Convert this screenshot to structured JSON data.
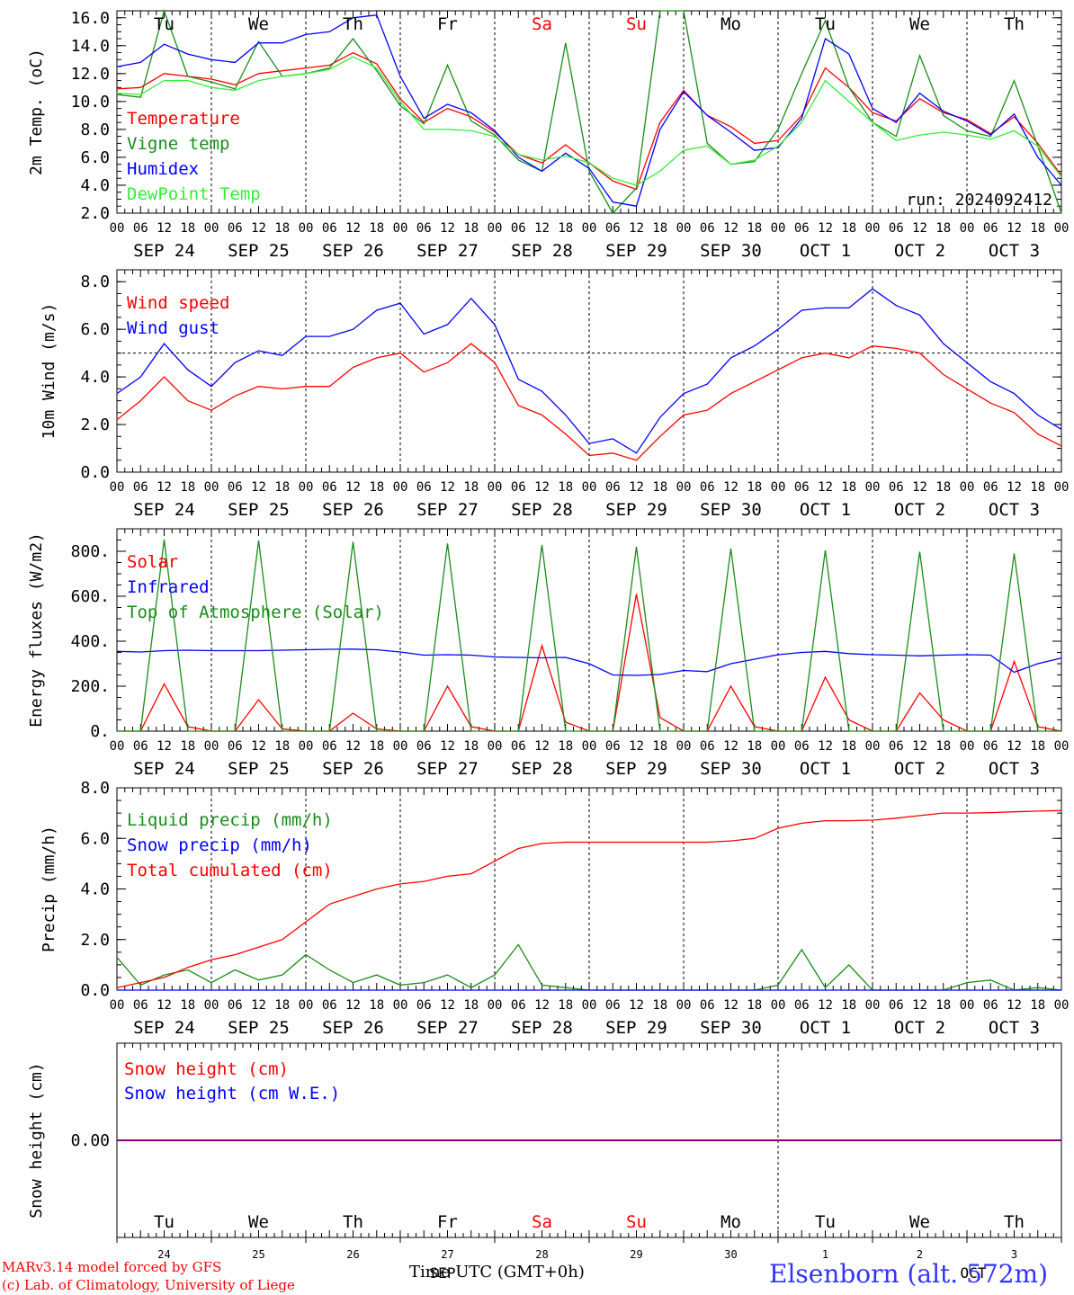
{
  "colors": {
    "red": "#ff0000",
    "dark_green": "#1a8c1a",
    "blue": "#0000ff",
    "light_green": "#33ee33",
    "purple": "#800080",
    "grid": "#000000"
  },
  "x_axis": {
    "hour_ticks": [
      "00",
      "06",
      "12",
      "18"
    ],
    "end_tick": "00",
    "dates": [
      "SEP 24",
      "SEP 25",
      "SEP 26",
      "SEP 27",
      "SEP 28",
      "SEP 29",
      "SEP 30",
      "OCT  1",
      "OCT  2",
      "OCT  3"
    ]
  },
  "day_names": [
    {
      "label": "Tu",
      "weekend": false
    },
    {
      "label": "We",
      "weekend": false
    },
    {
      "label": "Th",
      "weekend": false
    },
    {
      "label": "Fr",
      "weekend": false
    },
    {
      "label": "Sa",
      "weekend": true
    },
    {
      "label": "Su",
      "weekend": true
    },
    {
      "label": "Mo",
      "weekend": false
    },
    {
      "label": "Tu",
      "weekend": false
    },
    {
      "label": "We",
      "weekend": false
    },
    {
      "label": "Th",
      "weekend": false
    }
  ],
  "bottom_day_numbers": [
    "24",
    "25",
    "26",
    "27",
    "28",
    "29",
    "30",
    "1",
    "2",
    "3"
  ],
  "bottom_month_labels": [
    "SEP",
    "OCT"
  ],
  "footer": {
    "model_line": "MARv3.14 model forced by GFS",
    "copyright_line": "(c) Lab. of Climatology, University of Liege",
    "time_label": "Time UTC (GMT+0h)",
    "station": "Elsenborn (alt. 572m)"
  },
  "chart_data": [
    {
      "type": "line",
      "ylabel": "2m Temp. (oC)",
      "ylim": [
        2,
        16.5
      ],
      "yticks": [
        2,
        4,
        6,
        8,
        10,
        12,
        14,
        16
      ],
      "ytick_labels": [
        "2.0",
        "4.0",
        "6.0",
        "8.0",
        "10.0",
        "12.0",
        "14.0",
        "16.0"
      ],
      "annotation": "run: 2024092412",
      "x_hours": [
        0,
        6,
        12,
        18,
        24,
        30,
        36,
        42,
        48,
        54,
        60,
        66,
        72,
        78,
        84,
        90,
        96,
        102,
        108,
        114,
        120,
        126,
        132,
        138,
        144,
        150,
        156,
        162,
        168,
        174,
        180,
        186,
        192,
        198,
        204,
        210,
        216,
        222,
        228,
        234,
        240
      ],
      "series": [
        {
          "name": "Temperature",
          "color": "#ff0000",
          "values": [
            10.9,
            11.0,
            12.0,
            11.8,
            11.6,
            11.2,
            12.0,
            12.2,
            12.4,
            12.6,
            13.5,
            12.7,
            10.2,
            8.5,
            9.5,
            8.9,
            7.8,
            6.2,
            5.6,
            6.9,
            5.6,
            4.3,
            3.7,
            8.5,
            10.8,
            9.0,
            8.2,
            7.0,
            7.2,
            9.0,
            12.4,
            11.0,
            9.2,
            8.6,
            10.2,
            9.2,
            8.7,
            7.7,
            8.9,
            7.0,
            4.7
          ]
        },
        {
          "name": "Vigne temp",
          "color": "#1a8c1a",
          "values": [
            10.5,
            10.3,
            16.5,
            11.8,
            11.4,
            10.9,
            14.3,
            11.8,
            12.0,
            12.4,
            14.5,
            12.2,
            9.7,
            8.4,
            12.6,
            8.6,
            7.6,
            5.8,
            5.0,
            14.2,
            5.0,
            2.0,
            3.8,
            16.5,
            16.5,
            7.0,
            5.5,
            5.7,
            8.0,
            12.0,
            15.8,
            11.0,
            8.5,
            7.5,
            13.3,
            9.0,
            7.9,
            7.5,
            11.5,
            6.8,
            2.0
          ]
        },
        {
          "name": "Humidex",
          "color": "#0000ff",
          "values": [
            12.5,
            12.8,
            14.1,
            13.4,
            13.0,
            12.8,
            14.2,
            14.2,
            14.8,
            15.0,
            16.0,
            16.2,
            11.8,
            8.8,
            9.8,
            9.2,
            7.9,
            6.0,
            5.0,
            6.3,
            5.2,
            2.8,
            2.5,
            8.0,
            10.7,
            9.0,
            7.8,
            6.5,
            6.7,
            8.8,
            14.5,
            13.4,
            9.5,
            8.5,
            10.6,
            9.3,
            8.6,
            7.6,
            9.1,
            6.0,
            4.0
          ]
        },
        {
          "name": "DewPoint Temp",
          "color": "#33ee33",
          "values": [
            10.6,
            10.5,
            11.5,
            11.5,
            11.0,
            10.8,
            11.5,
            11.8,
            12.0,
            12.3,
            13.2,
            12.4,
            10.0,
            8.0,
            8.0,
            7.9,
            7.5,
            6.2,
            5.8,
            6.1,
            5.6,
            4.5,
            4.0,
            5.0,
            6.5,
            6.8,
            5.5,
            5.8,
            6.8,
            8.5,
            11.5,
            10.0,
            8.5,
            7.2,
            7.6,
            7.8,
            7.6,
            7.3,
            7.9,
            6.8,
            4.6
          ]
        }
      ]
    },
    {
      "type": "line",
      "ylabel": "10m Wind (m/s)",
      "ylim": [
        0,
        8.5
      ],
      "yticks": [
        0,
        2,
        4,
        6,
        8
      ],
      "ytick_labels": [
        "0.0",
        "2.0",
        "4.0",
        "6.0",
        "8.0"
      ],
      "reference_line": 5.0,
      "x_hours": [
        0,
        6,
        12,
        18,
        24,
        30,
        36,
        42,
        48,
        54,
        60,
        66,
        72,
        78,
        84,
        90,
        96,
        102,
        108,
        114,
        120,
        126,
        132,
        138,
        144,
        150,
        156,
        162,
        168,
        174,
        180,
        186,
        192,
        198,
        204,
        210,
        216,
        222,
        228,
        234,
        240
      ],
      "series": [
        {
          "name": "Wind speed",
          "color": "#ff0000",
          "values": [
            2.2,
            3.0,
            4.0,
            3.0,
            2.6,
            3.2,
            3.6,
            3.5,
            3.6,
            3.6,
            4.4,
            4.8,
            5.0,
            4.2,
            4.6,
            5.4,
            4.6,
            2.8,
            2.4,
            1.6,
            0.7,
            0.8,
            0.5,
            1.5,
            2.4,
            2.6,
            3.3,
            3.8,
            4.3,
            4.8,
            5.0,
            4.8,
            5.3,
            5.2,
            5.0,
            4.1,
            3.5,
            2.9,
            2.5,
            1.6,
            1.1
          ]
        },
        {
          "name": "Wind gust",
          "color": "#0000ff",
          "values": [
            3.3,
            4.0,
            5.4,
            4.3,
            3.6,
            4.6,
            5.1,
            4.9,
            5.7,
            5.7,
            6.0,
            6.8,
            7.1,
            5.8,
            6.2,
            7.3,
            6.2,
            3.9,
            3.4,
            2.4,
            1.2,
            1.4,
            0.8,
            2.3,
            3.3,
            3.7,
            4.8,
            5.3,
            6.0,
            6.8,
            6.9,
            6.9,
            7.7,
            7.0,
            6.6,
            5.4,
            4.6,
            3.8,
            3.3,
            2.4,
            1.8
          ]
        }
      ]
    },
    {
      "type": "line",
      "ylabel": "Energy fluxes (W/m2)",
      "ylim": [
        0,
        900
      ],
      "yticks": [
        0,
        200,
        400,
        600,
        800
      ],
      "ytick_labels": [
        "0.",
        "200.",
        "400.",
        "600.",
        "800."
      ],
      "x_hours": [
        0,
        6,
        12,
        18,
        24,
        30,
        36,
        42,
        48,
        54,
        60,
        66,
        72,
        78,
        84,
        90,
        96,
        102,
        108,
        114,
        120,
        126,
        132,
        138,
        144,
        150,
        156,
        162,
        168,
        174,
        180,
        186,
        192,
        198,
        204,
        210,
        216,
        222,
        228,
        234,
        240
      ],
      "series": [
        {
          "name": "Solar",
          "color": "#ff0000",
          "values": [
            0,
            0,
            210,
            20,
            0,
            0,
            140,
            10,
            0,
            0,
            80,
            10,
            0,
            0,
            200,
            20,
            0,
            0,
            380,
            40,
            0,
            0,
            610,
            60,
            0,
            0,
            200,
            20,
            0,
            0,
            240,
            50,
            0,
            0,
            170,
            50,
            0,
            0,
            310,
            20,
            0
          ]
        },
        {
          "name": "Infrared",
          "color": "#0000ff",
          "values": [
            355,
            352,
            358,
            360,
            358,
            358,
            358,
            360,
            362,
            364,
            365,
            362,
            352,
            338,
            340,
            338,
            330,
            328,
            326,
            328,
            300,
            250,
            248,
            252,
            270,
            265,
            300,
            320,
            340,
            350,
            355,
            345,
            340,
            338,
            335,
            338,
            340,
            338,
            262,
            300,
            325
          ]
        },
        {
          "name": "Top of Atmosphere (Solar)",
          "color": "#1a8c1a",
          "values": [
            0,
            0,
            852,
            0,
            0,
            0,
            848,
            0,
            0,
            0,
            842,
            0,
            0,
            0,
            835,
            0,
            0,
            0,
            828,
            0,
            0,
            0,
            820,
            0,
            0,
            0,
            812,
            0,
            0,
            0,
            805,
            0,
            0,
            0,
            798,
            0,
            0,
            0,
            790,
            0,
            0
          ]
        }
      ]
    },
    {
      "type": "line",
      "ylabel": "Precip (mm/h)",
      "ylim": [
        0,
        8
      ],
      "yticks": [
        0,
        2,
        4,
        6,
        8
      ],
      "ytick_labels": [
        "0.0",
        "2.0",
        "4.0",
        "6.0",
        "8.0"
      ],
      "x_hours": [
        0,
        6,
        12,
        18,
        24,
        30,
        36,
        42,
        48,
        54,
        60,
        66,
        72,
        78,
        84,
        90,
        96,
        102,
        108,
        114,
        120,
        126,
        132,
        138,
        144,
        150,
        156,
        162,
        168,
        174,
        180,
        186,
        192,
        198,
        204,
        210,
        216,
        222,
        228,
        234,
        240
      ],
      "series": [
        {
          "name": "Liquid precip (mm/h)",
          "color": "#1a8c1a",
          "values": [
            1.3,
            0.2,
            0.6,
            0.8,
            0.3,
            0.8,
            0.4,
            0.6,
            1.4,
            0.8,
            0.3,
            0.6,
            0.2,
            0.3,
            0.6,
            0.1,
            0.6,
            1.8,
            0.2,
            0.1,
            0.0,
            0.0,
            0.0,
            0.0,
            0.0,
            0.0,
            0.0,
            0.0,
            0.2,
            1.6,
            0.1,
            1.0,
            0.0,
            0.0,
            0.0,
            0.0,
            0.3,
            0.4,
            0.0,
            0.1,
            0.0
          ]
        },
        {
          "name": "Snow precip (mm/h)",
          "color": "#0000ff",
          "values": [
            0,
            0,
            0,
            0,
            0,
            0,
            0,
            0,
            0,
            0,
            0,
            0,
            0,
            0,
            0,
            0,
            0,
            0,
            0,
            0,
            0,
            0,
            0,
            0,
            0,
            0,
            0,
            0,
            0,
            0,
            0,
            0,
            0,
            0,
            0,
            0,
            0,
            0,
            0,
            0,
            0
          ]
        },
        {
          "name": "Total cumulated (cm)",
          "color": "#ff0000",
          "values": [
            0.1,
            0.3,
            0.5,
            0.9,
            1.2,
            1.4,
            1.7,
            2.0,
            2.7,
            3.4,
            3.7,
            4.0,
            4.2,
            4.3,
            4.5,
            4.6,
            5.1,
            5.6,
            5.8,
            5.85,
            5.85,
            5.85,
            5.85,
            5.85,
            5.85,
            5.85,
            5.9,
            6.0,
            6.4,
            6.6,
            6.7,
            6.7,
            6.72,
            6.8,
            6.9,
            7.0,
            7.0,
            7.02,
            7.05,
            7.08,
            7.1
          ]
        }
      ]
    },
    {
      "type": "line",
      "ylabel": "Snow height (cm)",
      "yticks": [
        0
      ],
      "ytick_labels": [
        "0.00"
      ],
      "series": [
        {
          "name": "Snow height (cm)",
          "color": "#ff0000",
          "values": [
            0,
            0
          ]
        },
        {
          "name": "Snow height (cm W.E.)",
          "color": "#0000ff",
          "values": [
            0,
            0
          ]
        }
      ]
    }
  ]
}
